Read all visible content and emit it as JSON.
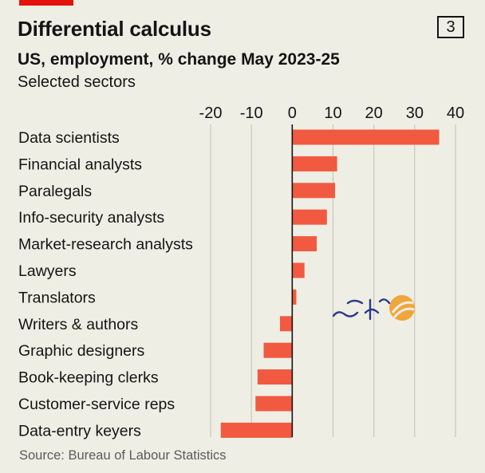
{
  "header": {
    "title": "Differential calculus",
    "badge": "3",
    "subtitle": "US, employment, % change May 2023-25",
    "subsubtitle": "Selected sectors"
  },
  "footer": {
    "source": "Source: Bureau of Labour Statistics"
  },
  "colors": {
    "bar": "#f15a40",
    "grid": "#c9c8bf",
    "zero_line": "#141414",
    "accent": "#e3120b"
  },
  "chart_data": {
    "type": "bar",
    "orientation": "horizontal",
    "title": "Differential calculus",
    "subtitle": "US, employment, % change May 2023-25",
    "categories": [
      "Data scientists",
      "Financial analysts",
      "Paralegals",
      "Info-security analysts",
      "Market-research analysts",
      "Lawyers",
      "Translators",
      "Writers & authors",
      "Graphic designers",
      "Book-keeping clerks",
      "Customer-service reps",
      "Data-entry keyers"
    ],
    "values": [
      36,
      11,
      10.5,
      8.5,
      6,
      3,
      1,
      -3,
      -7,
      -8.5,
      -9,
      -17.5
    ],
    "xlim": [
      -20,
      40
    ],
    "xticks": [
      -20,
      -10,
      0,
      10,
      20,
      30,
      40
    ],
    "xtick_labels": [
      "-20",
      "-10",
      "0",
      "10",
      "20",
      "30",
      "40"
    ],
    "axis_position": "top",
    "grid": true
  }
}
